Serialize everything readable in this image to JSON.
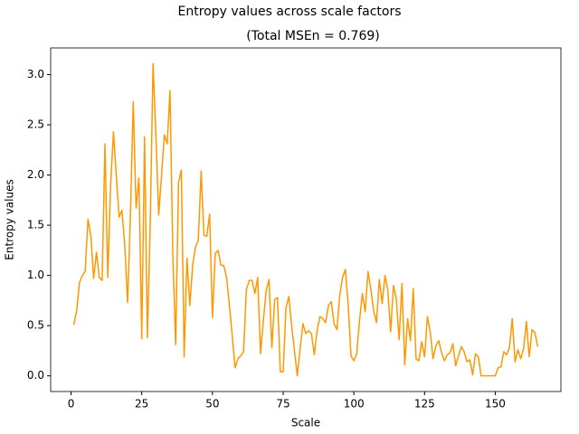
{
  "chart_data": {
    "type": "line",
    "title": "Entropy values across scale factors",
    "subtitle": "(Total MSEn = 0.769)",
    "x_label": "Scale",
    "y_label": "Entropy values",
    "xlim": [
      -7.2,
      173.2
    ],
    "ylim": [
      -0.156,
      3.266
    ],
    "xticks": [
      0,
      25,
      50,
      75,
      100,
      125,
      150
    ],
    "yticks": [
      {
        "value": 0,
        "label": "0.0"
      },
      {
        "value": 0.5,
        "label": "0.5"
      },
      {
        "value": 1,
        "label": "1.0"
      },
      {
        "value": 1.5,
        "label": "1.5"
      },
      {
        "value": 2,
        "label": "2.0"
      },
      {
        "value": 2.5,
        "label": "2.5"
      },
      {
        "value": 3,
        "label": "3.0"
      }
    ],
    "grid": false,
    "x": [
      1,
      2,
      3,
      4,
      5,
      6,
      7,
      8,
      9,
      10,
      11,
      12,
      13,
      14,
      15,
      16,
      17,
      18,
      19,
      20,
      21,
      22,
      23,
      24,
      25,
      26,
      27,
      28,
      29,
      30,
      31,
      32,
      33,
      34,
      35,
      36,
      37,
      38,
      39,
      40,
      41,
      42,
      43,
      44,
      45,
      46,
      47,
      48,
      49,
      50,
      51,
      52,
      53,
      54,
      55,
      56,
      57,
      58,
      59,
      60,
      61,
      62,
      63,
      64,
      65,
      66,
      67,
      68,
      69,
      70,
      71,
      72,
      73,
      74,
      75,
      76,
      77,
      78,
      79,
      80,
      81,
      82,
      83,
      84,
      85,
      86,
      87,
      88,
      89,
      90,
      91,
      92,
      93,
      94,
      95,
      96,
      97,
      98,
      99,
      100,
      101,
      102,
      103,
      104,
      105,
      106,
      107,
      108,
      109,
      110,
      111,
      112,
      113,
      114,
      115,
      116,
      117,
      118,
      119,
      120,
      121,
      122,
      123,
      124,
      125,
      126,
      127,
      128,
      129,
      130,
      131,
      132,
      133,
      134,
      135,
      136,
      137,
      138,
      139,
      140,
      141,
      142,
      143,
      144,
      145,
      146,
      147,
      148,
      149,
      150,
      151,
      152,
      153,
      154,
      155,
      156,
      157,
      158,
      159,
      160,
      161,
      162,
      163,
      164,
      165
    ],
    "series": [
      {
        "color": "#ff9800",
        "values": [
          0.51,
          0.65,
          0.93,
          1.0,
          1.04,
          1.56,
          1.4,
          0.97,
          1.23,
          0.98,
          0.95,
          2.31,
          0.98,
          1.9,
          2.43,
          2.0,
          1.58,
          1.65,
          1.3,
          0.73,
          1.6,
          2.73,
          1.67,
          1.97,
          0.37,
          2.38,
          0.38,
          1.5,
          3.11,
          2.4,
          1.6,
          2.0,
          2.4,
          2.31,
          2.84,
          1.2,
          0.31,
          1.92,
          2.05,
          0.19,
          1.17,
          0.7,
          1.1,
          1.28,
          1.35,
          2.04,
          1.4,
          1.39,
          1.61,
          0.58,
          1.22,
          1.25,
          1.1,
          1.1,
          0.98,
          0.7,
          0.4,
          0.08,
          0.17,
          0.2,
          0.24,
          0.86,
          0.95,
          0.95,
          0.82,
          0.98,
          0.22,
          0.55,
          0.85,
          0.96,
          0.28,
          0.76,
          0.78,
          0.04,
          0.04,
          0.68,
          0.79,
          0.5,
          0.25,
          0.0,
          0.27,
          0.52,
          0.42,
          0.45,
          0.42,
          0.21,
          0.45,
          0.59,
          0.57,
          0.53,
          0.7,
          0.74,
          0.52,
          0.46,
          0.8,
          0.98,
          1.06,
          0.7,
          0.2,
          0.15,
          0.22,
          0.55,
          0.82,
          0.64,
          1.04,
          0.86,
          0.65,
          0.53,
          0.96,
          0.72,
          1.0,
          0.85,
          0.44,
          0.9,
          0.77,
          0.36,
          0.92,
          0.11,
          0.57,
          0.35,
          0.87,
          0.17,
          0.15,
          0.34,
          0.19,
          0.59,
          0.44,
          0.17,
          0.3,
          0.35,
          0.23,
          0.15,
          0.21,
          0.23,
          0.32,
          0.1,
          0.2,
          0.29,
          0.24,
          0.14,
          0.16,
          0.01,
          0.22,
          0.19,
          0.0,
          0.0,
          0.0,
          0.0,
          0.0,
          0.0,
          0.08,
          0.09,
          0.24,
          0.21,
          0.28,
          0.57,
          0.14,
          0.26,
          0.17,
          0.27,
          0.54,
          0.19,
          0.46,
          0.43,
          0.29
        ]
      }
    ]
  }
}
